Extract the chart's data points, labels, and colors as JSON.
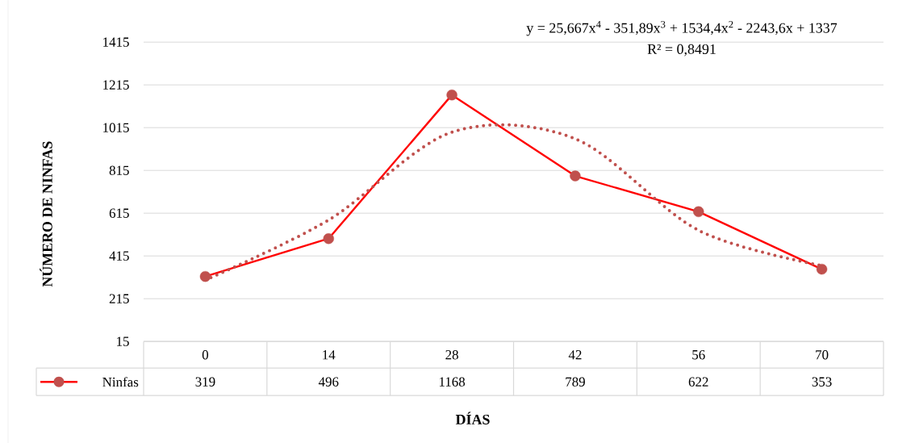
{
  "chart_data": {
    "type": "line",
    "xlabel": "DÍAS",
    "ylabel": "NÚMERO DE NINFAS",
    "categories": [
      "0",
      "14",
      "28",
      "42",
      "56",
      "70"
    ],
    "series": [
      {
        "name": "Ninfas",
        "color": "#ff0000",
        "colors": [
          "#c0504d",
          "#c0504d",
          "#c0504d",
          "#c0504d",
          "#c0504d",
          "#c0504d"
        ],
        "marker": "circle",
        "line_style": "solid",
        "values": [
          319,
          496,
          1168,
          789,
          622,
          353
        ],
        "value_labels": [
          "319",
          "496",
          "1168",
          "789",
          "622",
          "353"
        ]
      },
      {
        "color": "#c0504d",
        "marker": "none",
        "line_style": "dotted",
        "values": [
          302,
          583,
          994,
          963,
          535,
          370
        ]
      }
    ],
    "annotations": [
      "y = 25,667x$^{4}$ - 351,89x$^{3}$ + 1534,4x$^{2}$ - 2243,6x + 1337",
      "R² = 0,8491"
    ],
    "ylim": [
      15,
      1415
    ],
    "yticks": [
      15,
      215,
      415,
      615,
      815,
      1015,
      1215,
      1415
    ],
    "grid": "y",
    "legend": "bottom"
  }
}
